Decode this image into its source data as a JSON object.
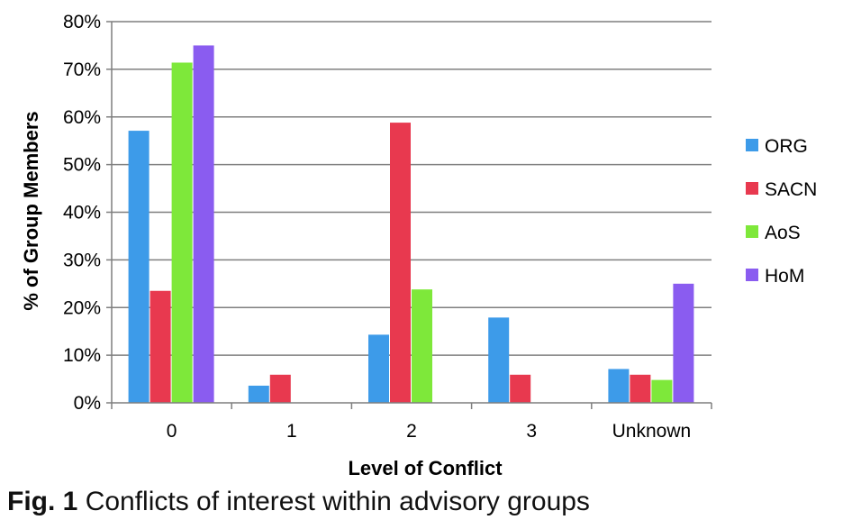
{
  "caption": {
    "fig_label": "Fig. 1",
    "text": "Conflicts of interest within advisory groups"
  },
  "chart_data": {
    "type": "bar",
    "xlabel": "Level of Conflict",
    "ylabel": "% of Group Members",
    "categories": [
      "0",
      "1",
      "2",
      "3",
      "Unknown"
    ],
    "ylim": [
      0,
      80
    ],
    "yticks": [
      0,
      10,
      20,
      30,
      40,
      50,
      60,
      70,
      80
    ],
    "ytick_labels": [
      "0%",
      "10%",
      "20%",
      "30%",
      "40%",
      "50%",
      "60%",
      "70%",
      "80%"
    ],
    "grid": true,
    "legend_position": "right",
    "series": [
      {
        "name": "ORG",
        "color": "#3d9be9",
        "values": [
          57.1,
          3.6,
          14.3,
          17.9,
          7.1
        ]
      },
      {
        "name": "SACN",
        "color": "#e8394f",
        "values": [
          23.5,
          5.9,
          58.8,
          5.9,
          5.9
        ]
      },
      {
        "name": "AoS",
        "color": "#7ee83a",
        "values": [
          71.4,
          null,
          23.8,
          null,
          4.8
        ]
      },
      {
        "name": "HoM",
        "color": "#8a5cf0",
        "values": [
          75,
          null,
          null,
          null,
          25
        ]
      }
    ]
  }
}
